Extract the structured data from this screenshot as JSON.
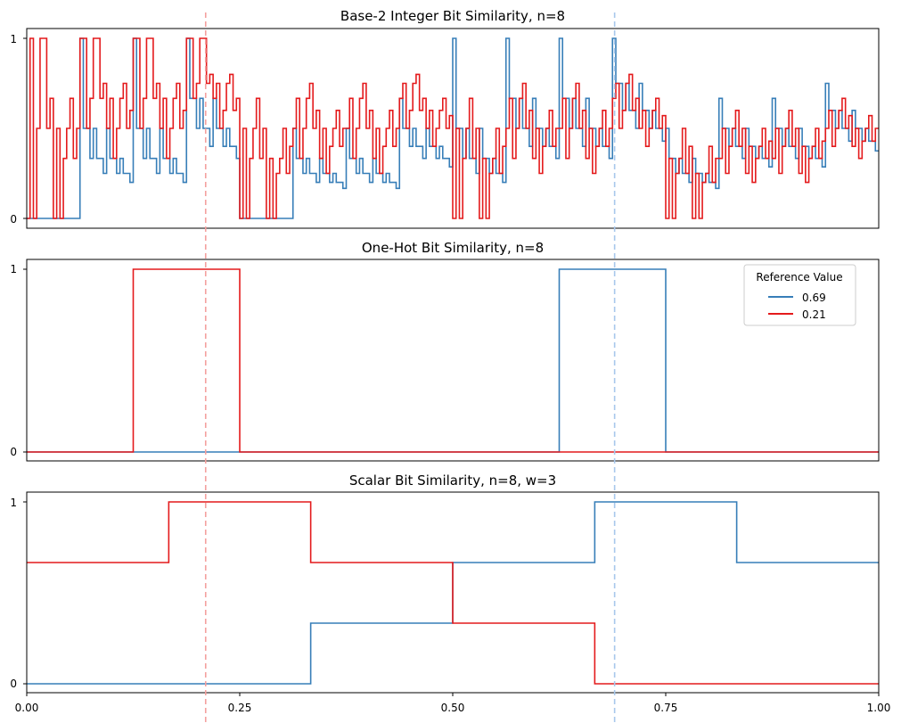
{
  "chart_data": [
    {
      "type": "line",
      "step": "post",
      "title": "Base-2 Integer Bit Similarity, n=8",
      "xlabel": "",
      "ylabel": "",
      "xlim": [
        0,
        1
      ],
      "ylim": [
        0,
        1
      ],
      "yticks": [
        "0",
        "1"
      ],
      "show_xticks": false,
      "grid": false,
      "x_step": 0.00390625,
      "series": [
        {
          "name": "0.69",
          "color": "#377eb8",
          "values": [
            0,
            0,
            0,
            0,
            0,
            0,
            0,
            0,
            0,
            0,
            0,
            0,
            0,
            0,
            0,
            0,
            1,
            0.5,
            0.5,
            0.333,
            0.5,
            0.333,
            0.333,
            0.25,
            0.5,
            0.333,
            0.333,
            0.25,
            0.333,
            0.25,
            0.25,
            0.2,
            1,
            0.5,
            0.5,
            0.333,
            0.5,
            0.333,
            0.333,
            0.25,
            0.5,
            0.333,
            0.333,
            0.25,
            0.333,
            0.25,
            0.25,
            0.2,
            1,
            0.667,
            0.667,
            0.5,
            0.667,
            0.5,
            0.5,
            0.4,
            0.667,
            0.5,
            0.5,
            0.4,
            0.5,
            0.4,
            0.4,
            0.333,
            0,
            0,
            0,
            0,
            0,
            0,
            0,
            0,
            0,
            0,
            0,
            0,
            0,
            0,
            0,
            0,
            0.5,
            0.333,
            0.333,
            0.25,
            0.333,
            0.25,
            0.25,
            0.2,
            0.333,
            0.25,
            0.25,
            0.2,
            0.25,
            0.2,
            0.2,
            0.167,
            0.5,
            0.333,
            0.333,
            0.25,
            0.333,
            0.25,
            0.25,
            0.2,
            0.333,
            0.25,
            0.25,
            0.2,
            0.25,
            0.2,
            0.2,
            0.167,
            0.667,
            0.5,
            0.5,
            0.4,
            0.5,
            0.4,
            0.4,
            0.333,
            0.5,
            0.4,
            0.4,
            0.333,
            0.4,
            0.333,
            0.333,
            0.286,
            1,
            0.5,
            0.5,
            0.333,
            0.5,
            0.333,
            0.333,
            0.25,
            0.5,
            0.333,
            0.333,
            0.25,
            0.333,
            0.25,
            0.25,
            0.2,
            1,
            0.667,
            0.667,
            0.5,
            0.667,
            0.5,
            0.5,
            0.4,
            0.667,
            0.5,
            0.5,
            0.4,
            0.5,
            0.4,
            0.4,
            0.333,
            1,
            0.667,
            0.667,
            0.5,
            0.667,
            0.5,
            0.5,
            0.4,
            0.667,
            0.5,
            0.5,
            0.4,
            0.5,
            0.4,
            0.4,
            0.333,
            1,
            0.75,
            0.75,
            0.6,
            0.75,
            0.6,
            0.6,
            0.5,
            0.75,
            0.6,
            0.6,
            0.5,
            0.6,
            0.5,
            0.5,
            0.429,
            0.5,
            0.333,
            0.333,
            0.25,
            0.333,
            0.25,
            0.25,
            0.2,
            0.333,
            0.25,
            0.25,
            0.2,
            0.25,
            0.2,
            0.2,
            0.167,
            0.667,
            0.5,
            0.5,
            0.4,
            0.5,
            0.4,
            0.4,
            0.333,
            0.5,
            0.4,
            0.4,
            0.333,
            0.4,
            0.333,
            0.333,
            0.286,
            0.667,
            0.5,
            0.5,
            0.4,
            0.5,
            0.4,
            0.4,
            0.333,
            0.5,
            0.4,
            0.4,
            0.333,
            0.4,
            0.333,
            0.333,
            0.286,
            0.75,
            0.6,
            0.6,
            0.5,
            0.6,
            0.5,
            0.5,
            0.429,
            0.6,
            0.5,
            0.5,
            0.429,
            0.5,
            0.429,
            0.429,
            0.375
          ]
        },
        {
          "name": "0.21",
          "color": "#e41a1c",
          "values": [
            0,
            1,
            0,
            0.5,
            1,
            1,
            0.5,
            0.667,
            0,
            0.5,
            0,
            0.333,
            0.5,
            0.667,
            0.333,
            0.5,
            1,
            1,
            0.5,
            0.667,
            1,
            1,
            0.667,
            0.75,
            0.5,
            0.667,
            0.333,
            0.5,
            0.667,
            0.75,
            0.5,
            0.6,
            1,
            1,
            0.5,
            0.667,
            1,
            1,
            0.667,
            0.75,
            0.5,
            0.667,
            0.333,
            0.5,
            0.667,
            0.75,
            0.5,
            0.6,
            1,
            1,
            0.667,
            0.75,
            1,
            1,
            0.75,
            0.8,
            0.667,
            0.75,
            0.5,
            0.6,
            0.75,
            0.8,
            0.6,
            0.667,
            0,
            0.5,
            0,
            0.333,
            0.5,
            0.667,
            0.333,
            0.5,
            0,
            0.333,
            0,
            0.25,
            0.333,
            0.5,
            0.25,
            0.4,
            0.5,
            0.667,
            0.333,
            0.5,
            0.667,
            0.75,
            0.5,
            0.6,
            0.333,
            0.5,
            0.25,
            0.4,
            0.5,
            0.6,
            0.4,
            0.5,
            0.5,
            0.667,
            0.333,
            0.5,
            0.667,
            0.75,
            0.5,
            0.6,
            0.333,
            0.5,
            0.25,
            0.4,
            0.5,
            0.6,
            0.4,
            0.5,
            0.667,
            0.75,
            0.5,
            0.6,
            0.75,
            0.8,
            0.6,
            0.667,
            0.5,
            0.6,
            0.4,
            0.5,
            0.6,
            0.667,
            0.5,
            0.571,
            0,
            0.5,
            0,
            0.333,
            0.5,
            0.667,
            0.333,
            0.5,
            0,
            0.333,
            0,
            0.25,
            0.333,
            0.5,
            0.25,
            0.4,
            0.5,
            0.667,
            0.333,
            0.5,
            0.667,
            0.75,
            0.5,
            0.6,
            0.333,
            0.5,
            0.25,
            0.4,
            0.5,
            0.6,
            0.4,
            0.5,
            0.5,
            0.667,
            0.333,
            0.5,
            0.667,
            0.75,
            0.5,
            0.6,
            0.333,
            0.5,
            0.25,
            0.4,
            0.5,
            0.6,
            0.4,
            0.5,
            0.667,
            0.75,
            0.5,
            0.6,
            0.75,
            0.8,
            0.6,
            0.667,
            0.5,
            0.6,
            0.4,
            0.5,
            0.6,
            0.667,
            0.5,
            0.571,
            0,
            0.333,
            0,
            0.25,
            0.333,
            0.5,
            0.25,
            0.4,
            0,
            0.25,
            0,
            0.2,
            0.25,
            0.4,
            0.2,
            0.333,
            0.333,
            0.5,
            0.25,
            0.4,
            0.5,
            0.6,
            0.4,
            0.5,
            0.25,
            0.4,
            0.2,
            0.333,
            0.4,
            0.5,
            0.333,
            0.429,
            0.333,
            0.5,
            0.25,
            0.4,
            0.5,
            0.6,
            0.4,
            0.5,
            0.25,
            0.4,
            0.2,
            0.333,
            0.4,
            0.5,
            0.333,
            0.429,
            0.5,
            0.6,
            0.4,
            0.5,
            0.6,
            0.667,
            0.5,
            0.571,
            0.4,
            0.5,
            0.333,
            0.429,
            0.5,
            0.571,
            0.429,
            0.5
          ]
        }
      ]
    },
    {
      "type": "line",
      "step": "post",
      "title": "One-Hot Bit Similarity, n=8",
      "xlabel": "",
      "ylabel": "",
      "xlim": [
        0,
        1
      ],
      "ylim": [
        0,
        1
      ],
      "yticks": [
        "0",
        "1"
      ],
      "show_xticks": false,
      "grid": false,
      "legend": {
        "title": "Reference Value",
        "placement": "top-right",
        "entries": [
          "0.69",
          "0.21"
        ]
      },
      "series": [
        {
          "name": "0.69",
          "color": "#377eb8",
          "segments": [
            [
              0,
              0.625,
              0
            ],
            [
              0.625,
              0.75,
              1
            ],
            [
              0.75,
              1,
              0
            ]
          ]
        },
        {
          "name": "0.21",
          "color": "#e41a1c",
          "segments": [
            [
              0,
              0.125,
              0
            ],
            [
              0.125,
              0.25,
              1
            ],
            [
              0.25,
              0.625,
              0
            ],
            [
              0.625,
              0.75,
              0
            ],
            [
              0.75,
              1,
              0
            ]
          ]
        }
      ]
    },
    {
      "type": "line",
      "step": "post",
      "title": "Scalar Bit Similarity, n=8, w=3",
      "xlabel": "",
      "ylabel": "",
      "xlim": [
        0,
        1
      ],
      "ylim": [
        0,
        1
      ],
      "yticks": [
        "0",
        "1"
      ],
      "xticks": [
        "0.00",
        "0.25",
        "0.50",
        "0.75",
        "1.00"
      ],
      "xtick_values": [
        0,
        0.25,
        0.5,
        0.75,
        1
      ],
      "show_xticks": true,
      "grid": false,
      "series": [
        {
          "name": "0.69",
          "color": "#377eb8",
          "segments": [
            [
              0,
              0.3333,
              0
            ],
            [
              0.3333,
              0.5,
              0.3333
            ],
            [
              0.5,
              0.6667,
              0.6667
            ],
            [
              0.6667,
              0.8333,
              1
            ],
            [
              0.8333,
              1,
              0.6667
            ]
          ]
        },
        {
          "name": "0.21",
          "color": "#e41a1c",
          "segments": [
            [
              0,
              0.1667,
              0.6667
            ],
            [
              0.1667,
              0.3333,
              1
            ],
            [
              0.3333,
              0.5,
              0.6667
            ],
            [
              0.5,
              0.6667,
              0.3333
            ],
            [
              0.6667,
              1,
              0
            ]
          ]
        }
      ]
    }
  ],
  "reference_lines": [
    {
      "name": "0.21",
      "x": 0.21,
      "color": "#f4a09e"
    },
    {
      "name": "0.69",
      "x": 0.69,
      "color": "#a8c8ec"
    }
  ]
}
